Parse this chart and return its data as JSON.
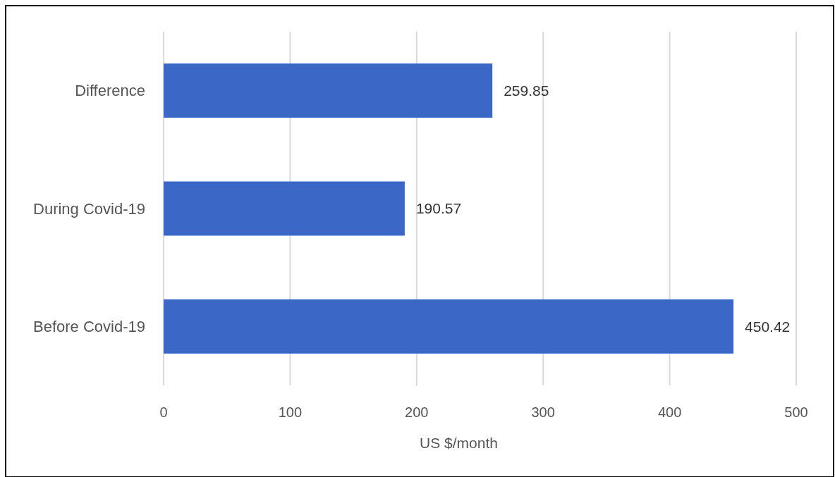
{
  "chart_data": {
    "type": "bar",
    "orientation": "horizontal",
    "categories": [
      "Difference",
      "During Covid-19",
      "Before Covid-19"
    ],
    "values": [
      259.85,
      190.57,
      450.42
    ],
    "color": "#3b68c6",
    "xlim": [
      0,
      500
    ],
    "xticks": [
      0,
      100,
      200,
      300,
      400,
      500
    ],
    "xlabel": "US $/month",
    "grid": "x",
    "data_labels": true
  }
}
